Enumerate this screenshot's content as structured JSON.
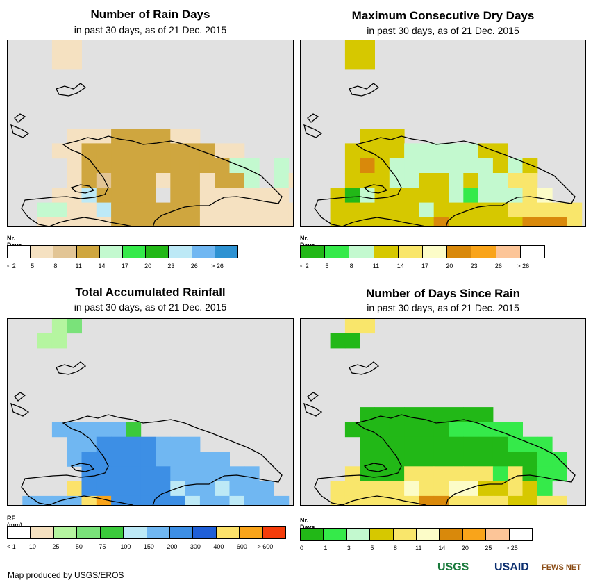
{
  "panels": [
    {
      "title": "Number of Rain Days",
      "subtitle": "in past 30 days, as of 21 Dec. 2015",
      "legend_title": "Nr. Days",
      "legend_colors": [
        "#ffffff",
        "#f5e1c1",
        "#e2c595",
        "#cfa63f",
        "#c3f9cf",
        "#35ea4a",
        "#22b817",
        "#bde9f6",
        "#70b7f2",
        "#2e92d2"
      ],
      "legend_labels": [
        "< 2",
        "5",
        "8",
        "11",
        "14",
        "17",
        "20",
        "23",
        "26",
        "> 26"
      ],
      "grid": [
        ".......B.........",
        "...aa..",
        "...aa",
        "",
        "",
        "",
        "",
        "....aaaBBBBaa",
        "...aaBBBBBBBBBaa",
        "....aBBBBBBBBBBeeFe",
        "....aBbBBBaBBaBBeFea",
        "...aaiBBBBFBBaaaaaa",
        "..eeaaiBBBBBBaaaaaaa",
        "..aaaaaBBBBBBaaaaaaa",
        "..aaaaaaabBaBaaaaa",
        ".......BBBa",
        "........B"
      ]
    },
    {
      "title": "Maximum Consecutive Dry Days",
      "subtitle": "in past 30 days, as of 21 Dec. 2015",
      "legend_title": "Nr. Days",
      "legend_colors": [
        "#22b817",
        "#35ea4a",
        "#c3f9cf",
        "#d6c800",
        "#f9e66b",
        "#fcfcc8",
        "#d9890b",
        "#f9a41a",
        "#fcc598",
        "#ffffff"
      ],
      "legend_labels": [
        "< 2",
        "5",
        "8",
        "11",
        "14",
        "17",
        "20",
        "23",
        "26",
        "> 26"
      ],
      "grid": [
        "",
        "...dd",
        "...dd",
        "",
        "",
        "",
        "",
        "....ddd",
        "...ddddcccccdd",
        "...dgdcccccccdcd",
        "...dddccddcdccee",
        "..dacdddddcbcccef",
        "..ddddddcdddddeeeee",
        "..dddddddgdddddggge",
        "..dddddhdddddddddd",
        ".......hdd",
        "........d"
      ]
    },
    {
      "title": "Total Accumulated Rainfall",
      "subtitle": "in past 30 days, as of 21 Dec. 2015",
      "legend_title": "RF (mm)",
      "legend_colors": [
        "#ffffff",
        "#f5e1c1",
        "#b5f5a0",
        "#7ae27a",
        "#3bca3b",
        "#bde9f6",
        "#70b7f2",
        "#3d8fe5",
        "#1f5fd8",
        "#fce26b",
        "#f9a41a",
        "#f53c0a"
      ],
      "legend_labels": [
        "< 1",
        "10",
        "25",
        "50",
        "75",
        "100",
        "150",
        "200",
        "300",
        "400",
        "600",
        "> 600"
      ],
      "grid": [
        "....cc",
        "...cd",
        "..cc",
        "",
        "",
        "",
        "",
        "",
        "...ggggge",
        "....gghhhhggg",
        "....ghhhhhggggg",
        ".....hhhhhhgggggg",
        "....jhhhhhhfggfggg",
        ".ggggjkhhhhhfggfggg",
        ".gggggjhhhhhgggggg",
        "......jhhhh",
        "........h"
      ]
    },
    {
      "title": "Number of Days Since Rain",
      "subtitle": "in past 30 days, as of 21 Dec. 2015",
      "legend_title": "Nr. Days",
      "legend_colors": [
        "#22b817",
        "#35ea4a",
        "#c3f9cf",
        "#d6c800",
        "#f9e66b",
        "#fcfcc8",
        "#d9890b",
        "#f9a41a",
        "#fcc598",
        "#ffffff"
      ],
      "legend_labels": [
        "0",
        "1",
        "3",
        "5",
        "8",
        "11",
        "14",
        "20",
        "25",
        "> 25"
      ],
      "grid": [
        "...ee",
        "...ee",
        "..aa",
        "",
        "",
        "",
        "",
        "....aaaaaaaaa",
        "...aaaaaaabbbbb",
        "....aaaaaaaaaabbb",
        "....aaaaaaaaaaaabb",
        "...eaaaeeeeeebeabb",
        "..eeeeefeeffddedb",
        "..eeeeeeggeeeeddee",
        "..eeeeeeeeeeeeee",
        ".......heee",
        "........e"
      ]
    }
  ],
  "credit": "Map produced by USGS/EROS",
  "logos": [
    "USGS",
    "USAID",
    "FEWS NET"
  ]
}
